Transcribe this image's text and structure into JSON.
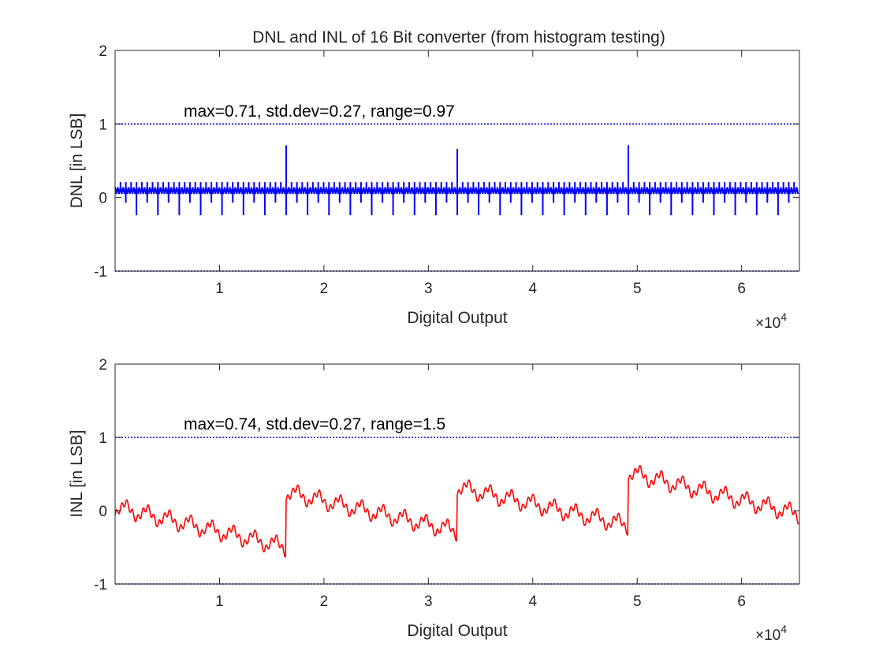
{
  "figure": {
    "title": "DNL and INL of 16 Bit converter (from histogram testing)"
  },
  "chart_data": [
    {
      "type": "line",
      "id": "dnl",
      "title": "DNL and INL of 16 Bit converter (from histogram testing)",
      "xlabel": "Digital Output",
      "ylabel": "DNL  [in LSB]",
      "x_exponent_label": "×10",
      "x_exponent_power": "4",
      "xlim": [
        0,
        65535
      ],
      "ylim": [
        -1,
        2
      ],
      "xticks": [
        10000,
        20000,
        30000,
        40000,
        50000,
        60000
      ],
      "xtick_labels": [
        "1",
        "2",
        "3",
        "4",
        "5",
        "6"
      ],
      "yticks": [
        -1,
        0,
        1,
        2
      ],
      "ytick_labels": [
        "-1",
        "0",
        "1",
        "2"
      ],
      "annotation": "max=0.71,   std.dev=0.27,   range=0.97",
      "limit_lines": [
        1,
        -1
      ],
      "limit_color": "#0000cc",
      "series_color": "#0000ff",
      "summary": {
        "max": 0.71,
        "std_dev": 0.27,
        "range": 0.97
      },
      "pattern": {
        "band_low": 0.05,
        "band_high": 0.14,
        "fine_spike_period": 512,
        "fine_spike_value": 0.21,
        "neg_spike_period": 2048,
        "neg_spike_value": -0.24,
        "mid_spike_period": 1024,
        "mid_spike_value": -0.07
      },
      "major_spikes": [
        {
          "x": 16384,
          "y": 0.71
        },
        {
          "x": 32768,
          "y": 0.66
        },
        {
          "x": 49152,
          "y": 0.71
        }
      ]
    },
    {
      "type": "line",
      "id": "inl",
      "xlabel": "Digital Output",
      "ylabel": "INL  [in LSB]",
      "x_exponent_label": "×10",
      "x_exponent_power": "4",
      "xlim": [
        0,
        65535
      ],
      "ylim": [
        -1,
        2
      ],
      "xticks": [
        10000,
        20000,
        30000,
        40000,
        50000,
        60000
      ],
      "xtick_labels": [
        "1",
        "2",
        "3",
        "4",
        "5",
        "6"
      ],
      "yticks": [
        -1,
        0,
        1,
        2
      ],
      "ytick_labels": [
        "-1",
        "0",
        "1",
        "2"
      ],
      "annotation": "max=0.74,   std.dev=0.27,   range=1.5",
      "limit_lines": [
        1,
        -1
      ],
      "limit_color": "#0000cc",
      "series_color": "#ff0000",
      "summary": {
        "max": 0.74,
        "std_dev": 0.27,
        "range": 1.5
      },
      "segments": [
        {
          "x_start": 0,
          "x_end": 16384,
          "y_start": 0.05,
          "y_end": -0.5
        },
        {
          "x_start": 16384,
          "x_end": 32768,
          "y_start": 0.25,
          "y_end": -0.28
        },
        {
          "x_start": 32768,
          "x_end": 49152,
          "y_start": 0.32,
          "y_end": -0.2
        },
        {
          "x_start": 49152,
          "x_end": 65535,
          "y_start": 0.52,
          "y_end": -0.05
        }
      ],
      "ripple": {
        "period": 2048,
        "amplitude": 0.22,
        "fine_period": 512,
        "fine_amplitude": 0.05
      }
    }
  ]
}
